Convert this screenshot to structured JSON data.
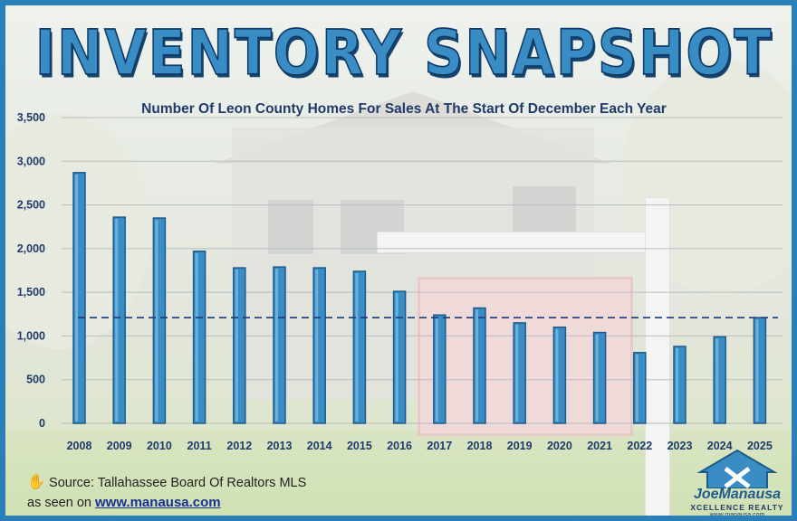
{
  "title": "INVENTORY SNAPSHOT",
  "subtitle": "Number Of Leon County Homes For Sales At The Start Of December Each Year",
  "source_text": "Source: Tallahassee Board Of Realtors MLS",
  "seen_prefix": "as seen on ",
  "seen_link": "www.manausa.com",
  "logo": {
    "name": "JoeManausa",
    "tagline": "XCELLENCE REALTY",
    "url": "www.manausa.com"
  },
  "icons": {
    "source": "hand-icon",
    "logo": "house-logo-icon"
  },
  "colors": {
    "bar": "#3a8cc4",
    "bar_edge": "#1d5b8a",
    "reference_line": "#1f3a7a",
    "frame": "#2b7fb8",
    "text": "#1f3a6b"
  },
  "chart_data": {
    "type": "bar",
    "title": "INVENTORY SNAPSHOT",
    "subtitle": "Number Of Leon County Homes For Sales At The Start Of December Each Year",
    "categories": [
      "2008",
      "2009",
      "2010",
      "2011",
      "2012",
      "2013",
      "2014",
      "2015",
      "2016",
      "2017",
      "2018",
      "2019",
      "2020",
      "2021",
      "2022",
      "2023",
      "2024",
      "2025"
    ],
    "values": [
      2870,
      2360,
      2350,
      1970,
      1780,
      1790,
      1780,
      1740,
      1510,
      1240,
      1320,
      1150,
      1100,
      1040,
      810,
      880,
      990,
      1210
    ],
    "ylim": [
      0,
      3500
    ],
    "yticks": [
      0,
      500,
      1000,
      1500,
      2000,
      2500,
      3000,
      3500
    ],
    "ytick_labels": [
      "0",
      "500",
      "1,000",
      "1,500",
      "2,000",
      "2,500",
      "3,000",
      "3,500"
    ],
    "reference_line": {
      "value": 1210,
      "style": "dashed"
    },
    "grid": true,
    "legend": "none",
    "xlabel": "",
    "ylabel": ""
  }
}
